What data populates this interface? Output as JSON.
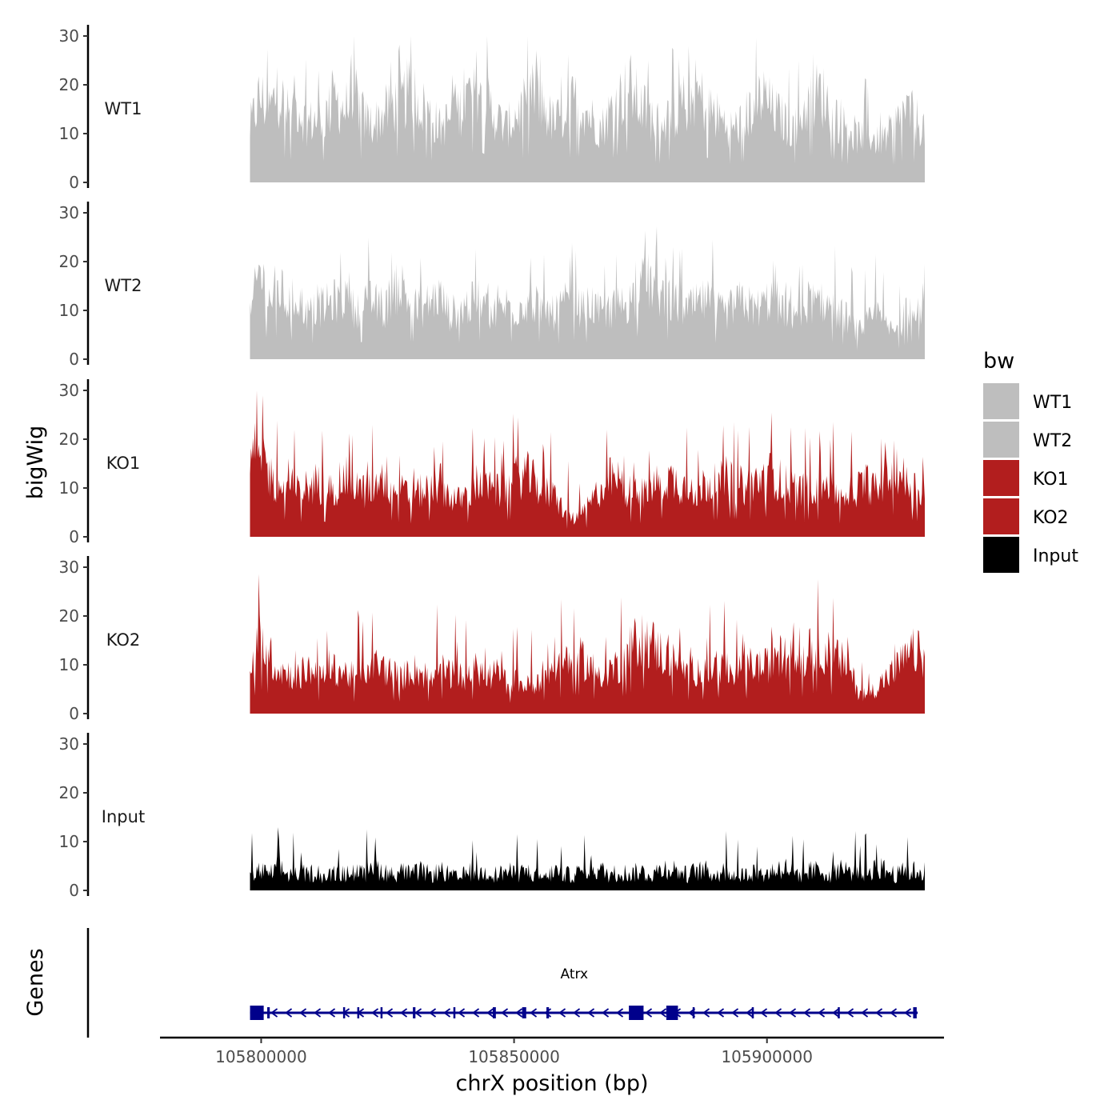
{
  "chart_data": {
    "type": "area",
    "region": {
      "chromosome": "chrX",
      "start": 105797800,
      "end": 105931200
    },
    "xlabel": "chrX position (bp)",
    "ylabel": "bigWig",
    "genes_label": "Genes",
    "ylim": [
      0,
      30
    ],
    "y_ticks": [
      "0",
      "10",
      "20",
      "30"
    ],
    "x_range": [
      105780000,
      105935000
    ],
    "x_ticks": [
      {
        "value": 105800000,
        "label": "105800000"
      },
      {
        "value": 105850000,
        "label": "105850000"
      },
      {
        "value": 105900000,
        "label": "105900000"
      }
    ],
    "legend": {
      "title": "bw",
      "entries": [
        {
          "label": "WT1",
          "color": "#bebebe"
        },
        {
          "label": "WT2",
          "color": "#bebebe"
        },
        {
          "label": "KO1",
          "color": "#b21e1e"
        },
        {
          "label": "KO2",
          "color": "#b21e1e"
        },
        {
          "label": "Input",
          "color": "#000000"
        }
      ]
    },
    "series": [
      {
        "name": "WT1",
        "color": "#bebebe",
        "profile": [
          12,
          19,
          16,
          20,
          15,
          17,
          13,
          14,
          15,
          18,
          16,
          20,
          14,
          13,
          15,
          17,
          18,
          21,
          17,
          15,
          12,
          14,
          16,
          19,
          22,
          18,
          14,
          12,
          15,
          17,
          20,
          16,
          13,
          15,
          18,
          17,
          14,
          12,
          16,
          19,
          21,
          17,
          15,
          13,
          14,
          16,
          18,
          20,
          17,
          15,
          13,
          12,
          14,
          17,
          19,
          16,
          14,
          12,
          15,
          18,
          20,
          17,
          14,
          12,
          10,
          11,
          9,
          10,
          13,
          16,
          14,
          12
        ]
      },
      {
        "name": "WT2",
        "color": "#bebebe",
        "profile": [
          9,
          20,
          13,
          16,
          12,
          14,
          10,
          11,
          12,
          13,
          14,
          11,
          12,
          13,
          10,
          15,
          16,
          12,
          11,
          13,
          14,
          10,
          11,
          12,
          13,
          11,
          10,
          12,
          11,
          13,
          12,
          11,
          10,
          12,
          13,
          11,
          12,
          10,
          11,
          12,
          13,
          16,
          17,
          15,
          13,
          12,
          11,
          12,
          13,
          11,
          10,
          12,
          13,
          11,
          12,
          14,
          11,
          10,
          12,
          13,
          11,
          12,
          10,
          9,
          6,
          8,
          10,
          7,
          6,
          10,
          13,
          12
        ]
      },
      {
        "name": "KO1",
        "color": "#b21e1e",
        "profile": [
          15,
          21,
          14,
          11,
          12,
          10,
          11,
          12,
          10,
          11,
          13,
          12,
          10,
          11,
          12,
          11,
          10,
          9,
          10,
          11,
          12,
          9,
          8,
          10,
          12,
          11,
          10,
          11,
          13,
          14,
          12,
          10,
          9,
          6,
          4,
          5,
          8,
          11,
          13,
          12,
          10,
          9,
          11,
          12,
          13,
          12,
          11,
          10,
          12,
          11,
          13,
          12,
          11,
          12,
          13,
          14,
          12,
          11,
          10,
          12,
          11,
          12,
          9,
          10,
          11,
          12,
          10,
          13,
          16,
          12,
          11,
          10
        ]
      },
      {
        "name": "KO2",
        "color": "#b21e1e",
        "profile": [
          8,
          17,
          13,
          10,
          9,
          8,
          10,
          9,
          8,
          10,
          9,
          8,
          10,
          11,
          10,
          9,
          8,
          10,
          9,
          8,
          10,
          9,
          8,
          9,
          10,
          8,
          9,
          7,
          8,
          6,
          7,
          9,
          10,
          11,
          13,
          12,
          10,
          9,
          10,
          11,
          14,
          17,
          16,
          14,
          12,
          11,
          9,
          10,
          9,
          11,
          10,
          9,
          10,
          11,
          10,
          12,
          13,
          12,
          11,
          14,
          15,
          13,
          12,
          10,
          5,
          4,
          6,
          8,
          10,
          12,
          14,
          12
        ]
      },
      {
        "name": "Input",
        "color": "#000000",
        "profile": [
          4,
          5,
          4,
          6,
          4,
          5,
          4,
          5,
          3,
          5,
          4,
          5,
          4,
          6,
          5,
          4,
          5,
          4,
          5,
          4,
          5,
          4,
          3,
          5,
          4,
          5,
          4,
          5,
          4,
          5,
          4,
          3,
          5,
          4,
          4,
          5,
          6,
          5,
          4,
          5,
          4,
          5,
          4,
          5,
          6,
          5,
          4,
          5,
          5,
          4,
          5,
          4,
          4,
          5,
          4,
          5,
          6,
          5,
          4,
          5,
          5,
          4,
          6,
          5,
          4,
          5,
          6,
          5,
          4,
          5,
          5,
          5
        ]
      }
    ],
    "gene": {
      "name": "Atrx",
      "color": "#00008b",
      "strand": "-",
      "start": 105797800,
      "end": 105929800,
      "exons": [
        {
          "start": 105797800,
          "end": 105800500,
          "type": "utr"
        },
        {
          "start": 105801200,
          "end": 105801700,
          "type": "cds"
        },
        {
          "start": 105816200,
          "end": 105816500,
          "type": "cds"
        },
        {
          "start": 105819000,
          "end": 105819300,
          "type": "cds"
        },
        {
          "start": 105823600,
          "end": 105823900,
          "type": "cds"
        },
        {
          "start": 105830000,
          "end": 105830500,
          "type": "cds"
        },
        {
          "start": 105838000,
          "end": 105838400,
          "type": "cds"
        },
        {
          "start": 105845800,
          "end": 105846400,
          "type": "cds"
        },
        {
          "start": 105851600,
          "end": 105852400,
          "type": "cds"
        },
        {
          "start": 105856400,
          "end": 105856900,
          "type": "cds"
        },
        {
          "start": 105872700,
          "end": 105875600,
          "type": "utr"
        },
        {
          "start": 105880100,
          "end": 105882400,
          "type": "utr"
        },
        {
          "start": 105885300,
          "end": 105885700,
          "type": "cds"
        },
        {
          "start": 105897000,
          "end": 105897400,
          "type": "cds"
        },
        {
          "start": 105914000,
          "end": 105914400,
          "type": "cds"
        },
        {
          "start": 105928900,
          "end": 105929600,
          "type": "cds"
        }
      ]
    }
  }
}
